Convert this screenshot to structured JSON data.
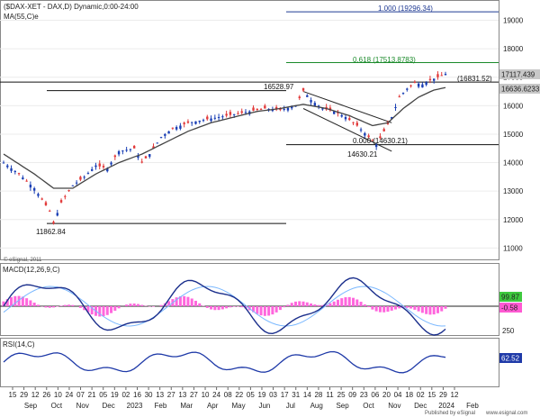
{
  "chart_data": {
    "type": "candlestick",
    "title": "($DAX-XET - DAX,D) Dynamic,0:00-24:00",
    "symbol": "$DAX-XET",
    "indicator_ma": "MA(55,C)e",
    "price_panel": {
      "y_ticks": [
        11000,
        12000,
        13000,
        14000,
        15000,
        16000,
        17000,
        18000,
        19000
      ],
      "ylim": [
        10600,
        19650
      ],
      "last_price": "17117.439",
      "ma_value": "16636.6233",
      "series": [
        {
          "name": "DAX",
          "points": [
            [
              0,
              14000
            ],
            [
              4,
              13600
            ],
            [
              8,
              13100
            ],
            [
              10,
              12700
            ],
            [
              12,
              12300
            ],
            [
              13,
              11862.84
            ],
            [
              15,
              12600
            ],
            [
              18,
              13200
            ],
            [
              21,
              13500
            ],
            [
              24,
              13900
            ],
            [
              27,
              13800
            ],
            [
              30,
              14400
            ],
            [
              34,
              14500
            ],
            [
              36,
              14000
            ],
            [
              38,
              14300
            ],
            [
              41,
              14900
            ],
            [
              44,
              15200
            ],
            [
              48,
              15400
            ],
            [
              52,
              15500
            ],
            [
              56,
              15600
            ],
            [
              60,
              15700
            ],
            [
              64,
              15800
            ],
            [
              68,
              15900
            ],
            [
              72,
              15850
            ],
            [
              76,
              16000
            ],
            [
              78,
              16528.97
            ],
            [
              80,
              16200
            ],
            [
              83,
              15900
            ],
            [
              86,
              15800
            ],
            [
              89,
              15600
            ],
            [
              92,
              15300
            ],
            [
              95,
              14900
            ],
            [
              97,
              14630.21
            ],
            [
              99,
              15100
            ],
            [
              101,
              15600
            ],
            [
              103,
              16300
            ],
            [
              105,
              16600
            ],
            [
              107,
              16800
            ],
            [
              109,
              16750
            ],
            [
              111,
              16900
            ],
            [
              113,
              17000
            ],
            [
              115,
              17117.439
            ]
          ]
        },
        {
          "name": "MA(55,C)e",
          "points": [
            [
              0,
              14300
            ],
            [
              8,
              13600
            ],
            [
              13,
              13100
            ],
            [
              18,
              13100
            ],
            [
              24,
              13600
            ],
            [
              30,
              14000
            ],
            [
              36,
              14300
            ],
            [
              42,
              14700
            ],
            [
              48,
              15100
            ],
            [
              54,
              15400
            ],
            [
              60,
              15600
            ],
            [
              66,
              15800
            ],
            [
              72,
              15900
            ],
            [
              78,
              16050
            ],
            [
              84,
              15900
            ],
            [
              90,
              15650
            ],
            [
              96,
              15300
            ],
            [
              100,
              15400
            ],
            [
              104,
              15900
            ],
            [
              108,
              16300
            ],
            [
              112,
              16550
            ],
            [
              115,
              16636.6233
            ]
          ]
        }
      ],
      "levels": [
        {
          "label": "1.000 (19296.34)",
          "value": 19296.34,
          "color": "#1f3a93"
        },
        {
          "label": "0.618 (17513.8783)",
          "value": 17513.8783,
          "color": "#1a8a2a"
        },
        {
          "label": "(16831.52)",
          "value": 16831.52,
          "color": "#111111"
        },
        {
          "label": "0.000 (14630.21)",
          "value": 14630.21,
          "color": "#111111"
        },
        {
          "value": 16528.97,
          "color": "#111111"
        },
        {
          "value": 11862.84,
          "color": "#111111"
        }
      ],
      "annotations": [
        "16528.97",
        "14630.21",
        "11862.84"
      ]
    },
    "macd_panel": {
      "title": "MACD(12,26,9,C)",
      "y_ticks": [
        "250"
      ],
      "macd_value": "99.87",
      "hist_value": "-0.58"
    },
    "rsi_panel": {
      "title": "RSI(14,C)",
      "rsi_value": "62.52"
    },
    "x_ticks": [
      "15",
      "29",
      "12",
      "26",
      "10",
      "24",
      "07",
      "21",
      "05",
      "19",
      "02",
      "16",
      "30",
      "13",
      "27",
      "13",
      "27",
      "10",
      "24",
      "08",
      "22",
      "05",
      "19",
      "03",
      "17",
      "31",
      "14",
      "28",
      "11",
      "25",
      "09",
      "23",
      "06",
      "20",
      "04",
      "18",
      "02",
      "15",
      "29",
      "12"
    ],
    "x_months": [
      "Sep",
      "Oct",
      "Nov",
      "Dec",
      "2023",
      "Feb",
      "Mar",
      "Apr",
      "May",
      "Jun",
      "Jul",
      "Aug",
      "Sep",
      "Oct",
      "Nov",
      "Dec",
      "2024",
      "Feb"
    ]
  },
  "footer": {
    "published": "Published by eSignal",
    "site": "www.esignal.com",
    "copyright": "© eSignal, 2011"
  }
}
